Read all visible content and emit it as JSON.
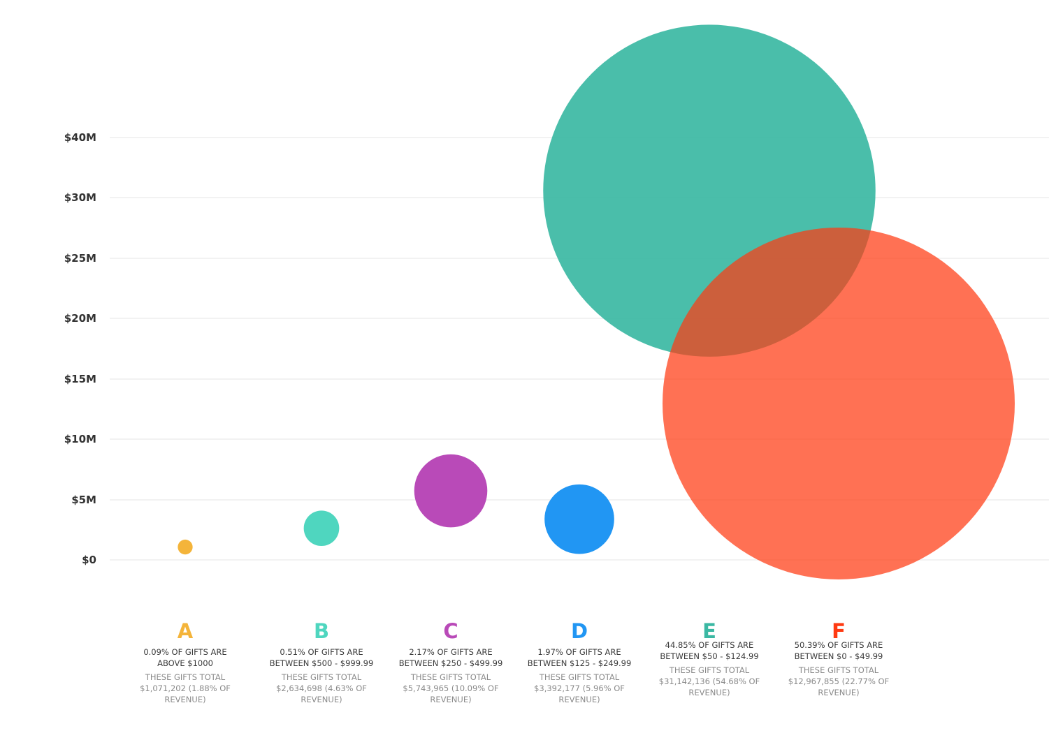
{
  "chart_data": {
    "type": "scatter",
    "title": "",
    "xlabel": "",
    "ylabel": "",
    "y_ticks": [
      {
        "value": 0,
        "label": "$0"
      },
      {
        "value": 5,
        "label": "$5M"
      },
      {
        "value": 10,
        "label": "$10M"
      },
      {
        "value": 15,
        "label": "$15M"
      },
      {
        "value": 20,
        "label": "$20M"
      },
      {
        "value": 25,
        "label": "$25M"
      },
      {
        "value": 30,
        "label": "$30M"
      },
      {
        "value": 40,
        "label": "$40M"
      }
    ],
    "grid": true,
    "legend": "none",
    "series": [
      {
        "letter": "A",
        "color": "#f4b43a",
        "y": 1.071202,
        "pct_gifts": 0.09,
        "description": [
          "0.09% OF GIFTS ARE",
          "ABOVE $1000"
        ],
        "total": [
          "THESE GIFTS TOTAL",
          "$1,071,202  (1.88% OF",
          "REVENUE)"
        ]
      },
      {
        "letter": "B",
        "color": "#4fd6bf",
        "y": 2.634698,
        "pct_gifts": 0.51,
        "description": [
          "0.51% OF GIFTS ARE",
          "BETWEEN $500 - $999.99"
        ],
        "total": [
          "THESE GIFTS TOTAL",
          "$2,634,698 (4.63% OF",
          "REVENUE)"
        ]
      },
      {
        "letter": "C",
        "color": "#b94ab8",
        "y": 5.743965,
        "pct_gifts": 2.17,
        "description": [
          "2.17% OF GIFTS ARE",
          "BETWEEN $250 - $499.99"
        ],
        "total": [
          "THESE GIFTS TOTAL",
          "$5,743,965 (10.09% OF",
          "REVENUE)"
        ]
      },
      {
        "letter": "D",
        "color": "#2196f3",
        "y": 3.392177,
        "pct_gifts": 1.97,
        "description": [
          "1.97% OF GIFTS ARE",
          "BETWEEN $125 - $249.99"
        ],
        "total": [
          "THESE GIFTS TOTAL",
          "$3,392,177 (5.96% OF",
          "REVENUE)"
        ]
      },
      {
        "letter": "E",
        "color": "#3bb8a3",
        "y": 31.142136,
        "pct_gifts": 44.85,
        "description": [
          "44.85% OF GIFTS ARE",
          "BETWEEN $50 - $124.99"
        ],
        "total": [
          "THESE GIFTS TOTAL",
          "$31,142,136 (54.68% OF",
          "REVENUE)"
        ]
      },
      {
        "letter": "F",
        "color": "#ff3a12",
        "y": 12.967855,
        "pct_gifts": 50.39,
        "description": [
          "50.39% OF GIFTS ARE",
          "BETWEEN $0 - $49.99"
        ],
        "total": [
          "THESE GIFTS TOTAL",
          "$12,967,855 (22.77% OF",
          "REVENUE)"
        ]
      }
    ]
  }
}
